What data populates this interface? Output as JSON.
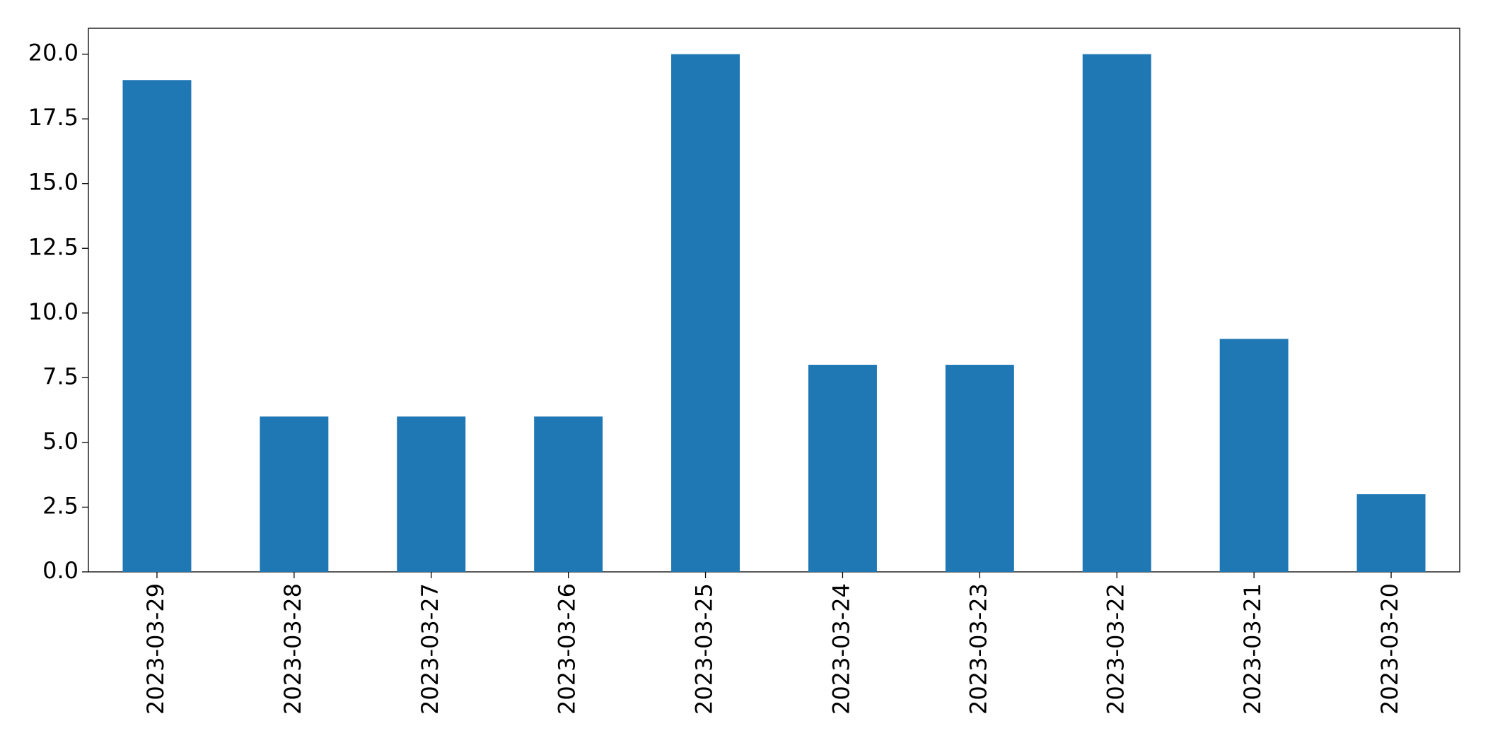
{
  "chart_data": {
    "type": "bar",
    "categories": [
      "2023-03-29",
      "2023-03-28",
      "2023-03-27",
      "2023-03-26",
      "2023-03-25",
      "2023-03-24",
      "2023-03-23",
      "2023-03-22",
      "2023-03-21",
      "2023-03-20"
    ],
    "values": [
      19,
      6,
      6,
      6,
      20,
      8,
      8,
      20,
      9,
      3
    ],
    "color": "#1f77b4",
    "ylim": [
      0,
      21
    ],
    "yticks": [
      {
        "value": 0,
        "label": "0.0"
      },
      2.5,
      {
        "value": 5,
        "label": "5.0"
      },
      7.5,
      {
        "value": 10,
        "label": "10.0"
      },
      12.5,
      {
        "value": 15,
        "label": "15.0"
      },
      17.5,
      {
        "value": 20,
        "label": "20.0"
      }
    ],
    "grid": false
  }
}
